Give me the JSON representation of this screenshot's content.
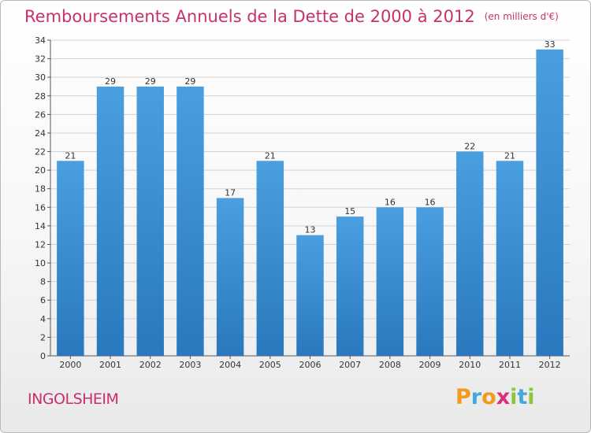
{
  "chart_data": {
    "type": "bar",
    "title": "Remboursements Annuels de la Dette de 2000 à 2012",
    "subtitle": "(en milliers d'€)",
    "categories": [
      "2000",
      "2001",
      "2002",
      "2003",
      "2004",
      "2005",
      "2006",
      "2007",
      "2008",
      "2009",
      "2010",
      "2011",
      "2012"
    ],
    "values": [
      21,
      29,
      29,
      29,
      17,
      21,
      13,
      15,
      16,
      16,
      22,
      21,
      33
    ],
    "ylim": [
      0,
      34
    ],
    "yticks": [
      0,
      2,
      4,
      6,
      8,
      10,
      12,
      14,
      16,
      18,
      20,
      22,
      24,
      26,
      28,
      30,
      32,
      34
    ],
    "grid": true,
    "bar_color": "#4a9fe0",
    "bar_color_dark": "#2a78bd"
  },
  "footer": {
    "city": "INGOLSHEIM",
    "logo_letters": [
      "P",
      "r",
      "o",
      "x",
      "i",
      "t",
      "i"
    ],
    "logo_colors": [
      "#f29a1b",
      "#45a6e0",
      "#f29a1b",
      "#d8327a",
      "#8cc43c",
      "#45a6e0",
      "#8cc43c"
    ]
  }
}
